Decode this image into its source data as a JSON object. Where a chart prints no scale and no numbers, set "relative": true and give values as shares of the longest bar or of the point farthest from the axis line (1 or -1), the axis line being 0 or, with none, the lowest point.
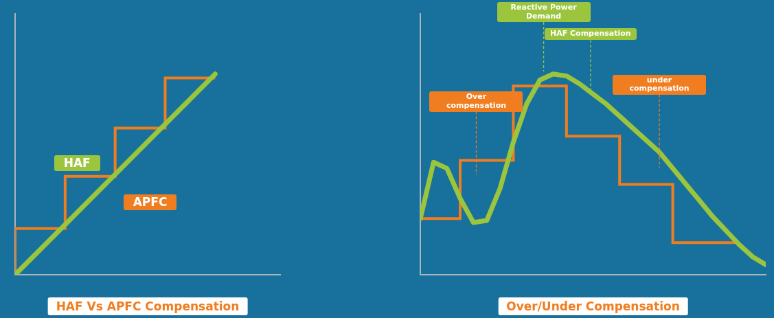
{
  "chart_data": [
    {
      "type": "line",
      "title": "HAF Vs APFC Compensation",
      "relative": true,
      "tick_labels": false,
      "grid": false,
      "legend": false,
      "marker": "none",
      "categories": [
        null,
        null,
        null,
        null,
        null
      ],
      "series": [
        {
          "name": "HAF",
          "color": "#9bc53d",
          "values": [
            0,
            0.25,
            0.5,
            0.75,
            1
          ]
        },
        {
          "name": "APFC",
          "type": "step",
          "color": "#f07d1f",
          "values": [
            0,
            0.23,
            0.49,
            0.73,
            0.98
          ]
        }
      ]
    },
    {
      "type": "line",
      "title": "Over/Under Compensation",
      "relative": true,
      "tick_labels": false,
      "grid": false,
      "legend": false,
      "marker": "none",
      "annotations": [
        "Reactive Power Demand",
        "HAF Compensation",
        "Over compensation",
        "under compensation"
      ],
      "categories": [
        null,
        null,
        null,
        null,
        null,
        null,
        null,
        null,
        null,
        null,
        null,
        null,
        null,
        null,
        null,
        null,
        null,
        null,
        null,
        null,
        null,
        null,
        null,
        null,
        null,
        null,
        null
      ],
      "series": [
        {
          "color": "#9bc53d",
          "values": [
            0.28,
            0.56,
            0.53,
            0.38,
            0.26,
            0.27,
            0.43,
            0.66,
            0.85,
            0.97,
            1.0,
            0.99,
            0.95,
            0.9,
            0.85,
            0.79,
            0.73,
            0.67,
            0.61,
            0.53,
            0.45,
            0.37,
            0.29,
            0.22,
            0.15,
            0.09,
            0.05
          ]
        },
        {
          "type": "step",
          "color": "#f07d1f",
          "values": [
            0.28,
            0.28,
            0.28,
            0.28,
            0.57,
            0.57,
            0.57,
            0.57,
            0.94,
            0.94,
            0.94,
            0.94,
            0.69,
            0.69,
            0.69,
            0.69,
            0.45,
            0.45,
            0.45,
            0.45,
            0.16,
            0.16,
            0.16,
            0.16,
            0.16,
            null,
            null
          ]
        }
      ]
    }
  ]
}
